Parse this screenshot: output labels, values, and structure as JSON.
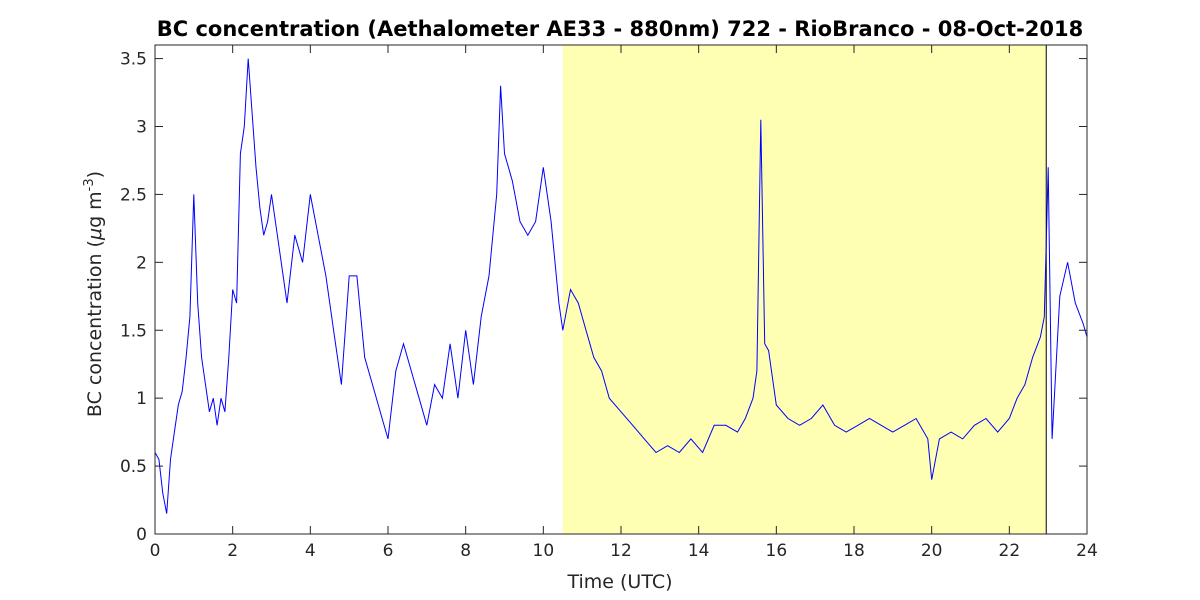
{
  "chart_data": {
    "type": "line",
    "title": "BC concentration (Aethalometer AE33 - 880nm) 722 - RioBranco - 08-Oct-2018",
    "xlabel": "Time (UTC)",
    "ylabel": {
      "prefix": "BC concentration (",
      "mu": "μ",
      "unit": "g m",
      "exponent": "-3",
      "suffix": ")"
    },
    "xlim": [
      0,
      24
    ],
    "ylim": [
      0,
      3.6
    ],
    "xticks": [
      0,
      2,
      4,
      6,
      8,
      10,
      12,
      14,
      16,
      18,
      20,
      22,
      24
    ],
    "xtick_labels": [
      "0",
      "2",
      "4",
      "6",
      "8",
      "10",
      "12",
      "14",
      "16",
      "18",
      "20",
      "22",
      "24"
    ],
    "yticks": [
      0,
      0.5,
      1,
      1.5,
      2,
      2.5,
      3,
      3.5
    ],
    "ytick_labels": [
      "0",
      "0.5",
      "1",
      "1.5",
      "2",
      "2.5",
      "3",
      "3.5"
    ],
    "grid": false,
    "highlight_region": {
      "x_start": 10.5,
      "x_end": 22.95,
      "color": "#ffffb3"
    },
    "series": [
      {
        "color": "#0000ff",
        "x": [
          0.0,
          0.1,
          0.2,
          0.3,
          0.4,
          0.5,
          0.6,
          0.7,
          0.8,
          0.9,
          1.0,
          1.1,
          1.2,
          1.3,
          1.4,
          1.5,
          1.6,
          1.7,
          1.8,
          1.9,
          2.0,
          2.1,
          2.2,
          2.3,
          2.4,
          2.5,
          2.6,
          2.7,
          2.8,
          2.9,
          3.0,
          3.2,
          3.4,
          3.6,
          3.8,
          4.0,
          4.2,
          4.4,
          4.6,
          4.8,
          5.0,
          5.2,
          5.4,
          5.6,
          5.8,
          6.0,
          6.2,
          6.4,
          6.6,
          6.8,
          7.0,
          7.2,
          7.4,
          7.6,
          7.8,
          8.0,
          8.2,
          8.4,
          8.6,
          8.8,
          8.9,
          9.0,
          9.2,
          9.4,
          9.6,
          9.8,
          10.0,
          10.2,
          10.4,
          10.5,
          10.7,
          10.9,
          11.1,
          11.3,
          11.5,
          11.7,
          12.0,
          12.3,
          12.6,
          12.9,
          13.2,
          13.5,
          13.8,
          14.1,
          14.4,
          14.7,
          15.0,
          15.2,
          15.4,
          15.5,
          15.6,
          15.7,
          15.8,
          16.0,
          16.3,
          16.6,
          16.9,
          17.2,
          17.5,
          17.8,
          18.1,
          18.4,
          18.7,
          19.0,
          19.3,
          19.6,
          19.9,
          20.0,
          20.2,
          20.5,
          20.8,
          21.1,
          21.4,
          21.7,
          22.0,
          22.2,
          22.4,
          22.6,
          22.8,
          22.9,
          23.0,
          23.1,
          23.3,
          23.5,
          23.7,
          23.9,
          24.0
        ],
        "y": [
          0.6,
          0.55,
          0.3,
          0.15,
          0.55,
          0.75,
          0.95,
          1.05,
          1.3,
          1.6,
          2.5,
          1.7,
          1.3,
          1.1,
          0.9,
          1.0,
          0.8,
          1.0,
          0.9,
          1.3,
          1.8,
          1.7,
          2.8,
          3.0,
          3.5,
          3.1,
          2.7,
          2.4,
          2.2,
          2.3,
          2.5,
          2.1,
          1.7,
          2.2,
          2.0,
          2.5,
          2.2,
          1.9,
          1.5,
          1.1,
          1.9,
          1.9,
          1.3,
          1.1,
          0.9,
          0.7,
          1.2,
          1.4,
          1.2,
          1.0,
          0.8,
          1.1,
          1.0,
          1.4,
          1.0,
          1.5,
          1.1,
          1.6,
          1.9,
          2.5,
          3.3,
          2.8,
          2.6,
          2.3,
          2.2,
          2.3,
          2.7,
          2.3,
          1.7,
          1.5,
          1.8,
          1.7,
          1.5,
          1.3,
          1.2,
          1.0,
          0.9,
          0.8,
          0.7,
          0.6,
          0.65,
          0.6,
          0.7,
          0.6,
          0.8,
          0.8,
          0.75,
          0.85,
          1.0,
          1.2,
          3.05,
          1.4,
          1.35,
          0.95,
          0.85,
          0.8,
          0.85,
          0.95,
          0.8,
          0.75,
          0.8,
          0.85,
          0.8,
          0.75,
          0.8,
          0.85,
          0.7,
          0.4,
          0.7,
          0.75,
          0.7,
          0.8,
          0.85,
          0.75,
          0.85,
          1.0,
          1.1,
          1.3,
          1.45,
          1.6,
          2.7,
          0.7,
          1.75,
          2.0,
          1.7,
          1.55,
          1.45
        ]
      }
    ]
  }
}
